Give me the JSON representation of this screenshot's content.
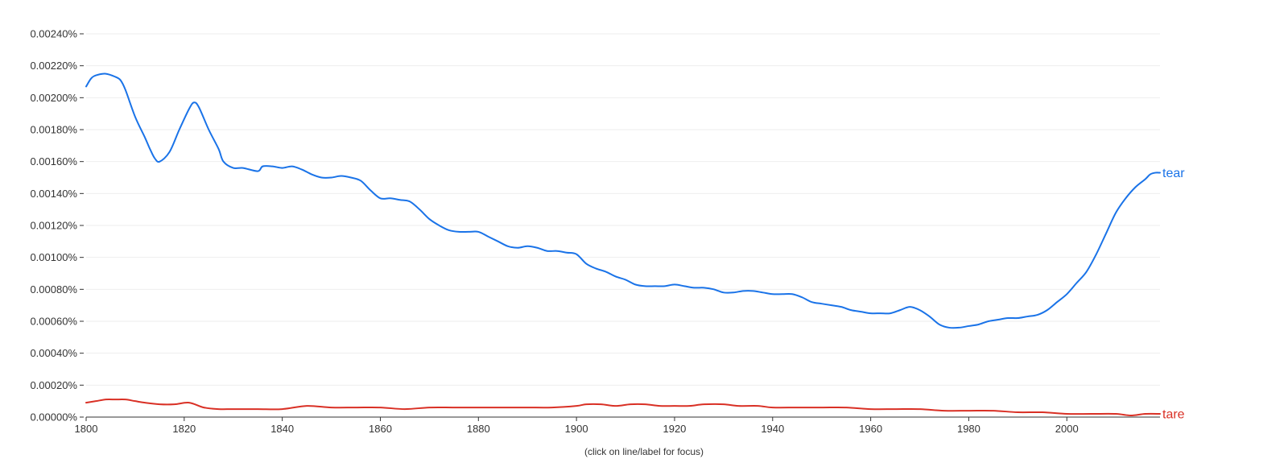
{
  "chart_data": {
    "type": "line",
    "title": "",
    "xlabel": "",
    "ylabel": "",
    "xlim": [
      1800,
      2019
    ],
    "ylim": [
      0,
      0.0024
    ],
    "grid": true,
    "x_ticks": [
      1800,
      1820,
      1840,
      1860,
      1880,
      1900,
      1920,
      1940,
      1960,
      1980,
      2000
    ],
    "x_tick_labels": [
      "1800",
      "1820",
      "1840",
      "1860",
      "1880",
      "1900",
      "1920",
      "1940",
      "1960",
      "1980",
      "2000"
    ],
    "y_ticks": [
      0,
      0.0002,
      0.0004,
      0.0006,
      0.0008,
      0.001,
      0.0012,
      0.0014,
      0.0016,
      0.0018,
      0.002,
      0.0022,
      0.0024
    ],
    "y_tick_labels": [
      "0.00000%",
      "0.00020%",
      "0.00040%",
      "0.00060%",
      "0.00080%",
      "0.00100%",
      "0.00120%",
      "0.00140%",
      "0.00160%",
      "0.00180%",
      "0.00200%",
      "0.00220%",
      "0.00240%"
    ],
    "series": [
      {
        "name": "tear",
        "color": "#1a73e8",
        "points": [
          [
            1800,
            0.00207
          ],
          [
            1801,
            0.00212
          ],
          [
            1802,
            0.00214
          ],
          [
            1804,
            0.00215
          ],
          [
            1806,
            0.00213
          ],
          [
            1807,
            0.00211
          ],
          [
            1808,
            0.00205
          ],
          [
            1810,
            0.00188
          ],
          [
            1812,
            0.00175
          ],
          [
            1813,
            0.00168
          ],
          [
            1814,
            0.00162
          ],
          [
            1815,
            0.0016
          ],
          [
            1817,
            0.00166
          ],
          [
            1819,
            0.0018
          ],
          [
            1821,
            0.00193
          ],
          [
            1822,
            0.00197
          ],
          [
            1823,
            0.00194
          ],
          [
            1825,
            0.0018
          ],
          [
            1827,
            0.00168
          ],
          [
            1828,
            0.0016
          ],
          [
            1830,
            0.00156
          ],
          [
            1832,
            0.00156
          ],
          [
            1835,
            0.00154
          ],
          [
            1836,
            0.00157
          ],
          [
            1838,
            0.00157
          ],
          [
            1840,
            0.00156
          ],
          [
            1842,
            0.00157
          ],
          [
            1844,
            0.00155
          ],
          [
            1846,
            0.00152
          ],
          [
            1848,
            0.0015
          ],
          [
            1850,
            0.0015
          ],
          [
            1852,
            0.00151
          ],
          [
            1854,
            0.0015
          ],
          [
            1856,
            0.00148
          ],
          [
            1858,
            0.00142
          ],
          [
            1860,
            0.00137
          ],
          [
            1862,
            0.00137
          ],
          [
            1864,
            0.00136
          ],
          [
            1866,
            0.00135
          ],
          [
            1868,
            0.0013
          ],
          [
            1870,
            0.00124
          ],
          [
            1872,
            0.0012
          ],
          [
            1874,
            0.00117
          ],
          [
            1876,
            0.00116
          ],
          [
            1878,
            0.00116
          ],
          [
            1880,
            0.00116
          ],
          [
            1882,
            0.00113
          ],
          [
            1884,
            0.0011
          ],
          [
            1886,
            0.00107
          ],
          [
            1888,
            0.00106
          ],
          [
            1890,
            0.00107
          ],
          [
            1892,
            0.00106
          ],
          [
            1894,
            0.00104
          ],
          [
            1896,
            0.00104
          ],
          [
            1898,
            0.00103
          ],
          [
            1900,
            0.00102
          ],
          [
            1902,
            0.00096
          ],
          [
            1904,
            0.00093
          ],
          [
            1906,
            0.00091
          ],
          [
            1908,
            0.00088
          ],
          [
            1910,
            0.00086
          ],
          [
            1912,
            0.00083
          ],
          [
            1914,
            0.00082
          ],
          [
            1916,
            0.00082
          ],
          [
            1918,
            0.00082
          ],
          [
            1920,
            0.00083
          ],
          [
            1922,
            0.00082
          ],
          [
            1924,
            0.00081
          ],
          [
            1926,
            0.00081
          ],
          [
            1928,
            0.0008
          ],
          [
            1930,
            0.00078
          ],
          [
            1932,
            0.00078
          ],
          [
            1934,
            0.00079
          ],
          [
            1936,
            0.00079
          ],
          [
            1938,
            0.00078
          ],
          [
            1940,
            0.00077
          ],
          [
            1942,
            0.00077
          ],
          [
            1944,
            0.00077
          ],
          [
            1946,
            0.00075
          ],
          [
            1948,
            0.00072
          ],
          [
            1950,
            0.00071
          ],
          [
            1952,
            0.0007
          ],
          [
            1954,
            0.00069
          ],
          [
            1956,
            0.00067
          ],
          [
            1958,
            0.00066
          ],
          [
            1960,
            0.00065
          ],
          [
            1962,
            0.00065
          ],
          [
            1964,
            0.00065
          ],
          [
            1966,
            0.00067
          ],
          [
            1968,
            0.00069
          ],
          [
            1970,
            0.00067
          ],
          [
            1972,
            0.00063
          ],
          [
            1974,
            0.00058
          ],
          [
            1976,
            0.00056
          ],
          [
            1978,
            0.00056
          ],
          [
            1980,
            0.00057
          ],
          [
            1982,
            0.00058
          ],
          [
            1984,
            0.0006
          ],
          [
            1986,
            0.00061
          ],
          [
            1988,
            0.00062
          ],
          [
            1990,
            0.00062
          ],
          [
            1992,
            0.00063
          ],
          [
            1994,
            0.00064
          ],
          [
            1996,
            0.00067
          ],
          [
            1998,
            0.00072
          ],
          [
            2000,
            0.00077
          ],
          [
            2002,
            0.00084
          ],
          [
            2004,
            0.00091
          ],
          [
            2006,
            0.00102
          ],
          [
            2008,
            0.00115
          ],
          [
            2010,
            0.00128
          ],
          [
            2012,
            0.00137
          ],
          [
            2014,
            0.00144
          ],
          [
            2016,
            0.00149
          ],
          [
            2017,
            0.00152
          ],
          [
            2018,
            0.00153
          ],
          [
            2019,
            0.00153
          ]
        ]
      },
      {
        "name": "tare",
        "color": "#d93025",
        "points": [
          [
            1800,
            9e-05
          ],
          [
            1802,
            0.0001
          ],
          [
            1804,
            0.00011
          ],
          [
            1806,
            0.00011
          ],
          [
            1808,
            0.00011
          ],
          [
            1810,
            0.0001
          ],
          [
            1812,
            9e-05
          ],
          [
            1815,
            8e-05
          ],
          [
            1818,
            8e-05
          ],
          [
            1821,
            9e-05
          ],
          [
            1824,
            6e-05
          ],
          [
            1827,
            5e-05
          ],
          [
            1830,
            5e-05
          ],
          [
            1835,
            5e-05
          ],
          [
            1840,
            5e-05
          ],
          [
            1845,
            7e-05
          ],
          [
            1850,
            6e-05
          ],
          [
            1855,
            6e-05
          ],
          [
            1860,
            6e-05
          ],
          [
            1865,
            5e-05
          ],
          [
            1870,
            6e-05
          ],
          [
            1875,
            6e-05
          ],
          [
            1880,
            6e-05
          ],
          [
            1885,
            6e-05
          ],
          [
            1890,
            6e-05
          ],
          [
            1895,
            6e-05
          ],
          [
            1900,
            7e-05
          ],
          [
            1902,
            8e-05
          ],
          [
            1905,
            8e-05
          ],
          [
            1908,
            7e-05
          ],
          [
            1911,
            8e-05
          ],
          [
            1914,
            8e-05
          ],
          [
            1917,
            7e-05
          ],
          [
            1920,
            7e-05
          ],
          [
            1923,
            7e-05
          ],
          [
            1926,
            8e-05
          ],
          [
            1930,
            8e-05
          ],
          [
            1933,
            7e-05
          ],
          [
            1937,
            7e-05
          ],
          [
            1940,
            6e-05
          ],
          [
            1945,
            6e-05
          ],
          [
            1950,
            6e-05
          ],
          [
            1955,
            6e-05
          ],
          [
            1960,
            5e-05
          ],
          [
            1965,
            5e-05
          ],
          [
            1970,
            5e-05
          ],
          [
            1975,
            4e-05
          ],
          [
            1980,
            4e-05
          ],
          [
            1985,
            4e-05
          ],
          [
            1990,
            3e-05
          ],
          [
            1995,
            3e-05
          ],
          [
            2000,
            2e-05
          ],
          [
            2005,
            2e-05
          ],
          [
            2010,
            2e-05
          ],
          [
            2013,
            1e-05
          ],
          [
            2016,
            2e-05
          ],
          [
            2019,
            2e-05
          ]
        ]
      }
    ],
    "footer_note": "(click on line/label for focus)"
  }
}
